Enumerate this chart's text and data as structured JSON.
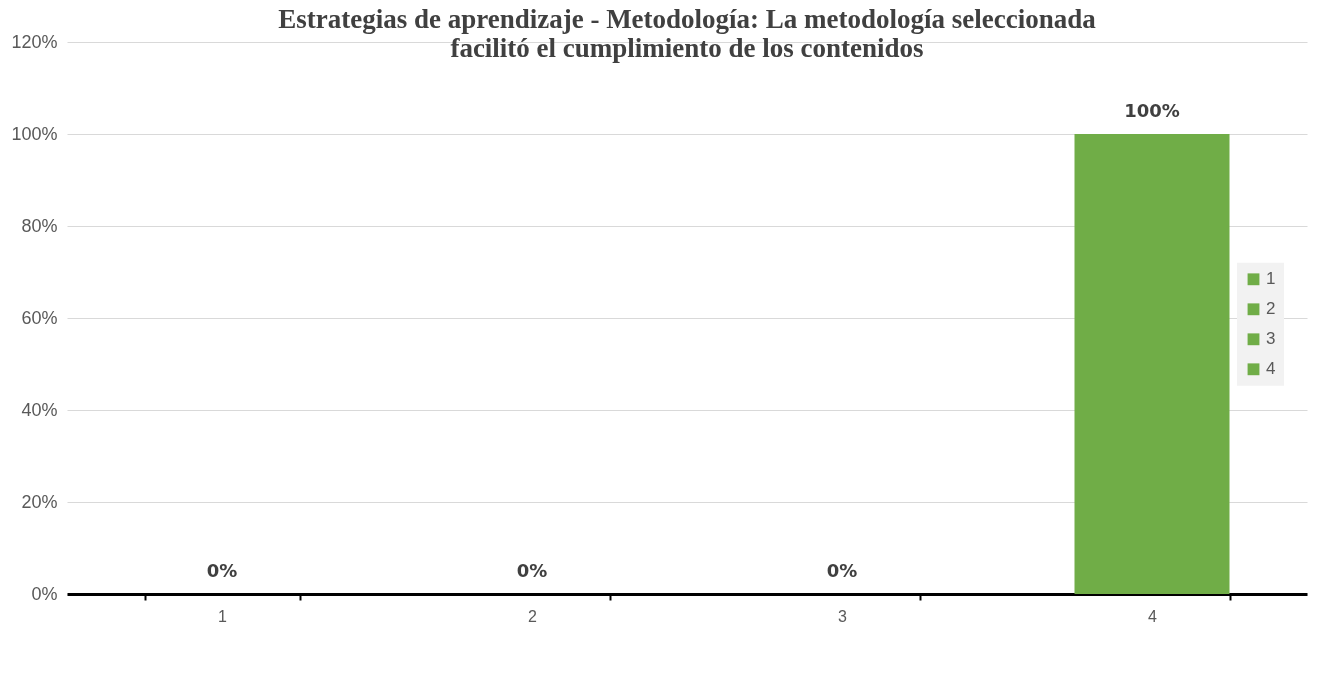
{
  "chart_data": {
    "type": "bar",
    "title": "Estrategias de aprendizaje - Metodología: La metodología seleccionada facilitó el cumplimiento de los contenidos",
    "categories": [
      "1",
      "2",
      "3",
      "4"
    ],
    "stacked": true,
    "series": [
      {
        "name": "1",
        "color": "#70ad47",
        "values": [
          0,
          null,
          null,
          null
        ],
        "value_labels": [
          "0%",
          null,
          null,
          null
        ]
      },
      {
        "name": "2",
        "color": "#70ad47",
        "values": [
          null,
          0,
          null,
          null
        ],
        "value_labels": [
          null,
          "0%",
          null,
          null
        ]
      },
      {
        "name": "3",
        "color": "#70ad47",
        "values": [
          null,
          null,
          0,
          null
        ],
        "value_labels": [
          null,
          null,
          "0%",
          null
        ]
      },
      {
        "name": "4",
        "color": "#70ad47",
        "values": [
          null,
          null,
          null,
          100
        ],
        "value_labels": [
          null,
          null,
          null,
          "100%"
        ]
      }
    ],
    "ylim": [
      0,
      120
    ],
    "yticks": [
      {
        "value": 0,
        "label": "0%"
      },
      {
        "value": 20,
        "label": "20%"
      },
      {
        "value": 40,
        "label": "40%"
      },
      {
        "value": 60,
        "label": "60%"
      },
      {
        "value": 80,
        "label": "80%"
      },
      {
        "value": 100,
        "label": "100%"
      },
      {
        "value": 120,
        "label": "120%"
      }
    ],
    "grid": "y",
    "legend": "right"
  }
}
